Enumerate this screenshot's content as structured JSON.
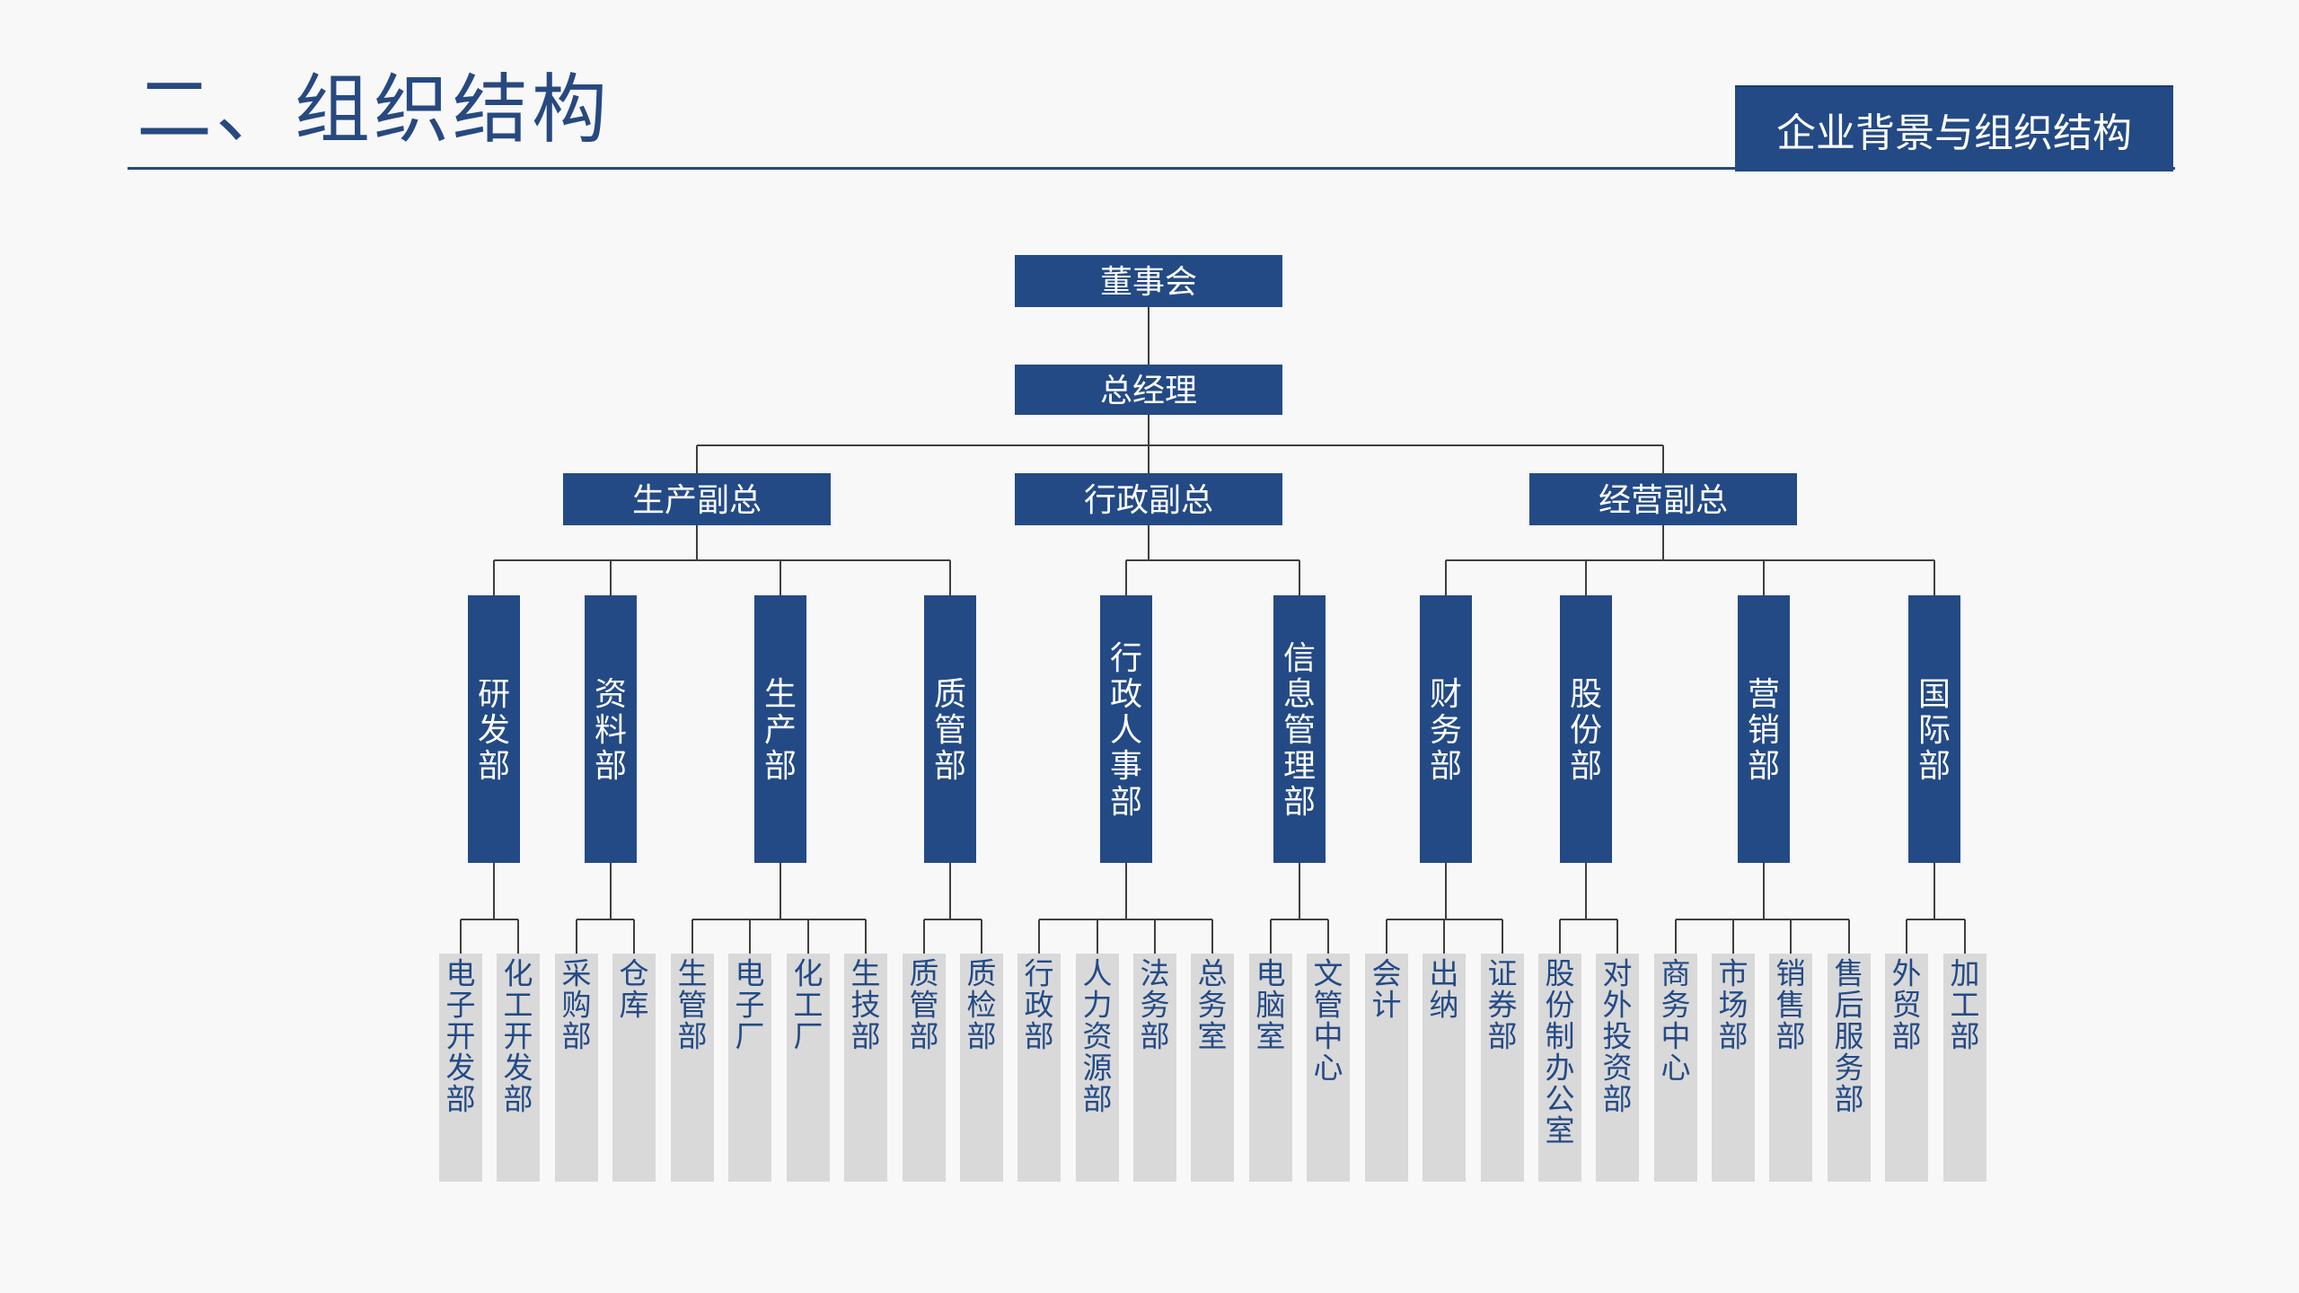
{
  "page": {
    "title": "二、组织结构",
    "badge": "企业背景与组织结构"
  },
  "colors": {
    "primary": "#234a85",
    "leaf_box": "#d9d9d9",
    "connector": "#3f3f3f",
    "background": "#f8f8f9"
  },
  "org": {
    "board": "董事会",
    "general_manager": "总经理",
    "deputies": [
      {
        "label": "生产副总",
        "departments": [
          {
            "label": "研发部",
            "units": [
              "电子开发部",
              "化工开发部"
            ]
          },
          {
            "label": "资料部",
            "units": [
              "采购部",
              "仓库"
            ]
          },
          {
            "label": "生产部",
            "units": [
              "生管部",
              "电子厂",
              "化工厂",
              "生技部"
            ]
          },
          {
            "label": "质管部",
            "units": [
              "质管部",
              "质检部"
            ]
          }
        ]
      },
      {
        "label": "行政副总",
        "departments": [
          {
            "label": "行政人事部",
            "units": [
              "行政部",
              "人力资源部",
              "法务部",
              "总务室"
            ]
          },
          {
            "label": "信息管理部",
            "units": [
              "电脑室",
              "文管中心"
            ]
          }
        ]
      },
      {
        "label": "经营副总",
        "departments": [
          {
            "label": "财务部",
            "units": [
              "会计",
              "出纳",
              "证券部"
            ]
          },
          {
            "label": "股份部",
            "units": [
              "股份制办公室",
              "对外投资部"
            ]
          },
          {
            "label": "营销部",
            "units": [
              "商务中心",
              "市场部",
              "销售部",
              "售后服务部"
            ]
          },
          {
            "label": "国际部",
            "units": [
              "外贸部",
              "加工部"
            ]
          }
        ]
      }
    ]
  }
}
